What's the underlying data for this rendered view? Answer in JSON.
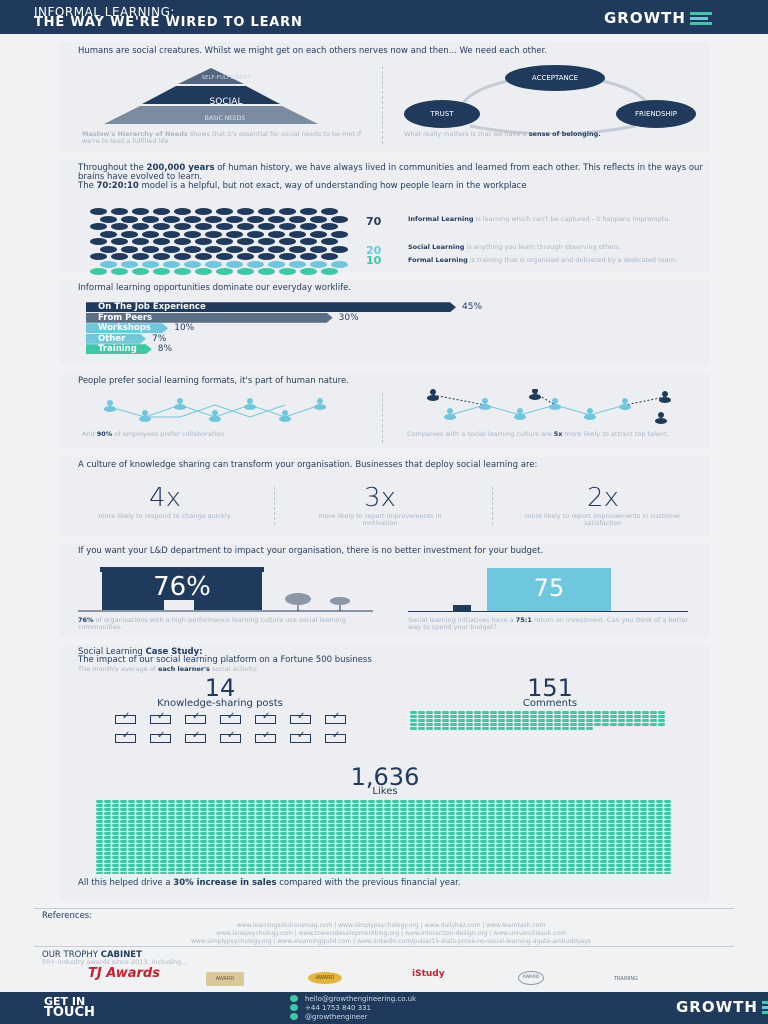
{
  "header": {
    "line1": "INFORMAL LEARNING:",
    "line2": "THE WAY WE'RE WIRED TO LEARN",
    "logo": "GROWTH"
  },
  "s1": {
    "intro": "Humans are social creatures. Whilst we might get on each others nerves now and then... We need each other.",
    "pyramid": {
      "top": "SELF-FULFILMENT",
      "mid": "SOCIAL",
      "bottom": "BASIC NEEDS"
    },
    "left_note_bold": "Maslow's Hierarchy of Needs",
    "left_note": " shows that it's essential for social needs to be met if we're to lead a fulfilled life.",
    "circles": {
      "a": "ACCEPTANCE",
      "b": "TRUST",
      "c": "FRIENDSHIP"
    },
    "right_note": "What really matters is that we have a ",
    "right_note_bold": "sense of belonging."
  },
  "s2": {
    "p1a": "Throughout the ",
    "p1b": "200,000 years",
    "p1c": " of human history, we have always lived in communities and learned from each other. This reflects in the ways our brains have evolved to learn.",
    "p2a": "The ",
    "p2b": "70:20:10",
    "p2c": " model is a helpful, but not exact, way of understanding how people learn in the workplace",
    "n70": "70",
    "n20": "20",
    "n10": "10",
    "d70b": "Informal Learning",
    "d70": " is learning which can't be captured - it happens impromptu.",
    "d20b": "Social Learning",
    "d20": " is anything you learn through observing others.",
    "d10b": "Formal Learning",
    "d10": " is training that is organised and delivered by a dedicated team."
  },
  "s3": {
    "title": "Informal learning opportunities dominate our everyday worklife.",
    "bars": [
      {
        "label": "On The Job Experience",
        "value": "45%",
        "pct": 45
      },
      {
        "label": "From Peers",
        "value": "30%",
        "pct": 30
      },
      {
        "label": "Workshops",
        "value": "10%",
        "pct": 10
      },
      {
        "label": "Other",
        "value": "7%",
        "pct": 7
      },
      {
        "label": "Training",
        "value": "8%",
        "pct": 8
      }
    ]
  },
  "s4": {
    "title": "People prefer social learning formats, it's part of human nature.",
    "left_a": "And ",
    "left_b": "90%",
    "left_c": " of employees prefer collaboration.",
    "right_a": "Companies with a social learning culture are ",
    "right_b": "5x",
    "right_c": " more likely to attract top talent."
  },
  "s5": {
    "title": "A culture of knowledge sharing can transform your organisation. Businesses that deploy social learning are:",
    "stats": [
      {
        "value": "4x",
        "note": "more likely to respond to change quickly."
      },
      {
        "value": "3x",
        "note": "more likely to report improvements in motivation"
      },
      {
        "value": "2x",
        "note": "more likely to report improvements in customer satisfaction"
      }
    ]
  },
  "s6": {
    "title": "If you want your L&D department to impact your organisation, there is no better investment for your budget.",
    "left_value": "76%",
    "left_note_b": "76%",
    "left_note": " of organisations with a high-performance learning culture use social learning communities.",
    "right_value": "75",
    "right_note_a": "Social learning initiatives have a ",
    "right_note_b": "75:1",
    "right_note_c": " return on investment. Can you think of a better way to spend your budget?"
  },
  "s7": {
    "title_a": "Social Learning ",
    "title_b": "Case Study:",
    "subtitle": "The impact of our social learning platform on a Fortune 500 business",
    "avg_a": "The monthly average of ",
    "avg_b": "each learner's",
    "avg_c": " social activity:",
    "posts_value": "14",
    "posts_label": "Knowledge-sharing posts",
    "comments_value": "151",
    "comments_label": "Comments",
    "likes_value": "1,636",
    "likes_label": "Likes",
    "result_a": "All this helped drive a ",
    "result_b": "30% increase in sales",
    "result_c": " compared with the previous financial year."
  },
  "refs": {
    "title": "References:",
    "line1": "www.learningsolutionsmag.com | www.simplypsychology.org | www.dailyhaz.com | www.learntash.com",
    "line2": "www.lanepsychology.com | www.towersdevelopmentblog.org | www.interaction-design.org | www.universitiesuk.com",
    "line3": "www.simplypsychology.org | www.elearningguild.com | www.linkedin.com/pulse/15-stats-prove-no-social-learning-agata-ambuddyays"
  },
  "trophy": {
    "title_a": "OUR TROPHY ",
    "title_b": "CABINET",
    "sub": "50+ industry awards since 2013, including...",
    "awards": [
      "TJ Awards",
      "AWARD",
      "AWARD",
      "iStudy",
      "AWARD",
      "TRAINING"
    ]
  },
  "footer": {
    "cta1": "GET IN",
    "cta2": "TOUCH",
    "email": "hello@growthengineering.co.uk",
    "phone": "+44 1753 840 331",
    "twitter": "@growthengineer",
    "logo": "GROWTH"
  },
  "colors": {
    "navy": "#1f3a5c",
    "teal": "#3ec9a6",
    "sky": "#6fc7de",
    "slate": "#5a6f85"
  }
}
